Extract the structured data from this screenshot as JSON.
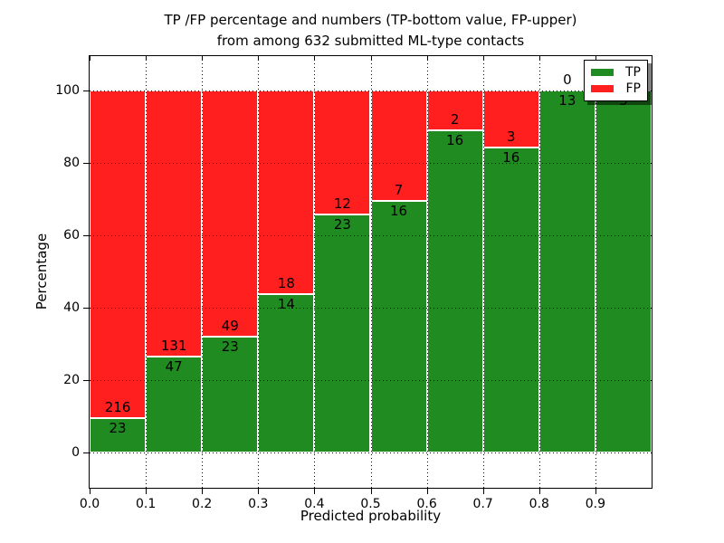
{
  "chart_data": {
    "type": "bar",
    "stacked": true,
    "normalized_to_percent": true,
    "title_line1": "TP /FP percentage and numbers (TP-bottom value, FP-upper)",
    "title_line2": "from among 632 submitted ML-type contacts",
    "xlabel": "Predicted probability",
    "ylabel": "Percentage",
    "bin_edges": [
      0.0,
      0.1,
      0.2,
      0.3,
      0.4,
      0.5,
      0.6,
      0.7,
      0.8,
      0.9,
      1.0
    ],
    "series": [
      {
        "name": "TP",
        "values": [
          23,
          47,
          23,
          14,
          23,
          16,
          16,
          16,
          13,
          3
        ]
      },
      {
        "name": "FP",
        "values": [
          216,
          131,
          49,
          18,
          12,
          7,
          2,
          3,
          0,
          0
        ]
      }
    ],
    "bar_percent_tp": [
      9.62,
      26.4,
      31.94,
      43.75,
      65.71,
      69.57,
      88.89,
      84.21,
      100,
      100
    ],
    "xticks": [
      "0.0",
      "0.1",
      "0.2",
      "0.3",
      "0.4",
      "0.5",
      "0.6",
      "0.7",
      "0.8",
      "0.9"
    ],
    "yticks": [
      0,
      20,
      40,
      60,
      80,
      100
    ],
    "xlim": [
      0.0,
      1.0
    ],
    "ylim": [
      -10,
      110
    ],
    "grid": "dotted black, drawn over bars",
    "bar_edge_color": "#ffffff",
    "legend": {
      "position": "upper right",
      "entries": [
        {
          "label": "TP",
          "color": "#208b20"
        },
        {
          "label": "FP",
          "color": "#ff1f1f"
        }
      ]
    }
  }
}
